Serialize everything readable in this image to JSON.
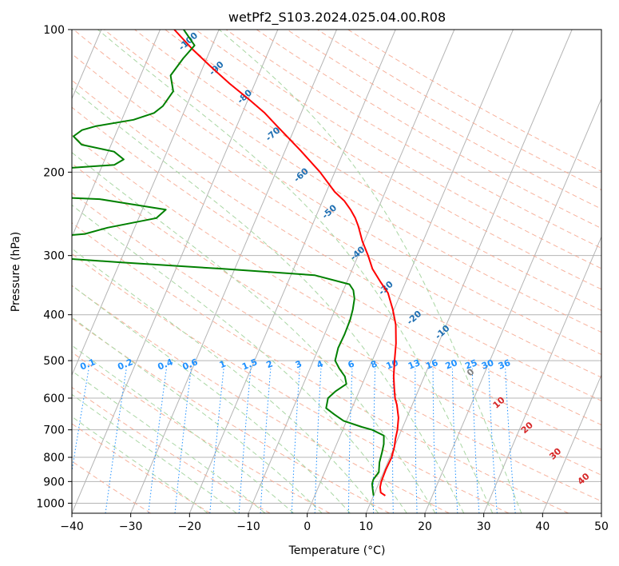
{
  "chart_data": {
    "type": "line",
    "subtype": "skew-t log-p diagram",
    "title": "wetPf2_S103.2024.025.04.00.R08",
    "xlabel": "Temperature (°C)",
    "ylabel": "Pressure (hPa)",
    "xlim": [
      -40,
      50
    ],
    "ylim": [
      1050,
      100
    ],
    "y_scale": "log",
    "x_ticks": [
      "−40",
      "−30",
      "−20",
      "−10",
      "0",
      "10",
      "20",
      "30",
      "40",
      "50"
    ],
    "y_ticks": [
      "100",
      "200",
      "300",
      "400",
      "500",
      "600",
      "700",
      "800",
      "900",
      "1000"
    ],
    "grid": true,
    "series": [
      {
        "role": "temperature",
        "color": "#ff0000",
        "points": [
          [
            964,
            12.0
          ],
          [
            950,
            11.0
          ],
          [
            925,
            10.5
          ],
          [
            900,
            10.3
          ],
          [
            850,
            10.2
          ],
          [
            800,
            10.3
          ],
          [
            760,
            10.0
          ],
          [
            730,
            9.6
          ],
          [
            700,
            9.3
          ],
          [
            660,
            8.6
          ],
          [
            620,
            7.4
          ],
          [
            600,
            6.6
          ],
          [
            570,
            5.7
          ],
          [
            540,
            4.8
          ],
          [
            500,
            3.8
          ],
          [
            460,
            2.8
          ],
          [
            420,
            1.4
          ],
          [
            390,
            -0.2
          ],
          [
            360,
            -2.2
          ],
          [
            340,
            -4.4
          ],
          [
            320,
            -6.6
          ],
          [
            300,
            -8.3
          ],
          [
            280,
            -10.3
          ],
          [
            260,
            -12.1
          ],
          [
            250,
            -13.2
          ],
          [
            240,
            -14.6
          ],
          [
            230,
            -16.3
          ],
          [
            220,
            -18.6
          ],
          [
            200,
            -22.5
          ],
          [
            180,
            -27.4
          ],
          [
            160,
            -33.1
          ],
          [
            150,
            -36.2
          ],
          [
            140,
            -40.0
          ],
          [
            130,
            -44.3
          ],
          [
            120,
            -48.6
          ],
          [
            110,
            -53.1
          ],
          [
            100,
            -57.6
          ]
        ]
      },
      {
        "role": "dewpoint",
        "color": "#008000",
        "points": [
          [
            964,
            10.0
          ],
          [
            940,
            9.5
          ],
          [
            910,
            8.9
          ],
          [
            890,
            8.8
          ],
          [
            860,
            9.2
          ],
          [
            820,
            8.6
          ],
          [
            780,
            8.3
          ],
          [
            750,
            8.0
          ],
          [
            720,
            7.4
          ],
          [
            700,
            5.0
          ],
          [
            690,
            3.0
          ],
          [
            670,
            -0.5
          ],
          [
            650,
            -2.5
          ],
          [
            630,
            -4.4
          ],
          [
            600,
            -4.8
          ],
          [
            580,
            -4.0
          ],
          [
            560,
            -2.7
          ],
          [
            540,
            -3.5
          ],
          [
            520,
            -5.0
          ],
          [
            500,
            -6.3
          ],
          [
            470,
            -6.7
          ],
          [
            440,
            -6.6
          ],
          [
            410,
            -6.7
          ],
          [
            390,
            -7.0
          ],
          [
            370,
            -7.5
          ],
          [
            355,
            -8.3
          ],
          [
            345,
            -9.4
          ],
          [
            330,
            -16.0
          ],
          [
            320,
            -32.0
          ],
          [
            310,
            -50.0
          ],
          [
            303,
            -62.0
          ],
          [
            275,
            -65.0
          ],
          [
            270,
            -58.0
          ],
          [
            262,
            -54.6
          ],
          [
            250,
            -47.0
          ],
          [
            240,
            -46.0
          ],
          [
            232,
            -54.0
          ],
          [
            228,
            -58.0
          ],
          [
            225,
            -69.0
          ],
          [
            200,
            -72.0
          ],
          [
            197,
            -68.0
          ],
          [
            193,
            -58.0
          ],
          [
            188,
            -56.8
          ],
          [
            181,
            -59.0
          ],
          [
            175,
            -65.0
          ],
          [
            168,
            -67.0
          ],
          [
            163,
            -66.0
          ],
          [
            160,
            -64.0
          ],
          [
            155,
            -58.0
          ],
          [
            150,
            -55.0
          ],
          [
            145,
            -54.0
          ],
          [
            135,
            -53.3
          ],
          [
            125,
            -54.9
          ],
          [
            115,
            -54.0
          ],
          [
            108,
            -53.0
          ],
          [
            100,
            -56.0
          ]
        ]
      }
    ],
    "reference_lines": {
      "dry_adiabats_theta_C": [
        -30,
        -20,
        -10,
        0,
        10,
        20,
        30,
        40,
        50,
        60,
        70,
        80,
        90,
        100,
        110,
        120,
        130,
        140,
        150,
        160,
        170,
        180,
        190,
        200
      ],
      "moist_adiabat_labels": [
        "-100",
        "-90",
        "-80",
        "-70",
        "-60",
        "-50",
        "-40",
        "-30",
        "-20",
        "-10",
        "0",
        "10",
        "20",
        "30",
        "40"
      ],
      "mixing_ratio_labels": [
        "0.1",
        "0.2",
        "0.4",
        "0.6",
        "1",
        "1.5",
        "2",
        "3",
        "4",
        "6",
        "8",
        "10",
        "13",
        "16",
        "20",
        "25",
        "30",
        "36"
      ],
      "mixing_ratio_values": [
        0.1,
        0.2,
        0.4,
        0.6,
        1,
        1.5,
        2,
        3,
        4,
        6,
        8,
        10,
        13,
        16,
        20,
        25,
        30,
        36
      ]
    },
    "colors": {
      "temperature": "#ff0000",
      "dewpoint": "#008000",
      "isotherm": "#b4b4b4",
      "dry_adiabat": "#f6a58c",
      "moist_adiabat": "#a9d6a3",
      "mixing_ratio": "#1e90ff",
      "moist_label_cold": "#1f6fb2",
      "moist_label_warm": "#d62728"
    }
  }
}
